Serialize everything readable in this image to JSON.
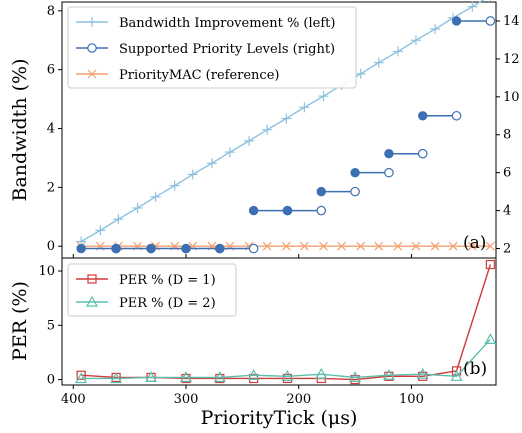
{
  "chart_data": [
    {
      "type": "line",
      "panel_tag": "(a)",
      "ylabel": "Bandwidth (%)",
      "xlim": [
        410,
        25
      ],
      "ylim": [
        -0.4,
        8.3
      ],
      "y2lim": [
        1.5,
        15.0
      ],
      "yticks": [
        0,
        2,
        4,
        6,
        8
      ],
      "y2ticks": [
        2,
        4,
        6,
        8,
        10,
        12,
        14
      ],
      "grid": false,
      "legend_position": "upper-left",
      "series": [
        {
          "name": "Bandwidth Improvement % (left)",
          "axis": "left",
          "color": "#8ec1dd",
          "marker": "plus",
          "x": [
            393,
            376,
            360,
            343,
            327,
            310,
            294,
            277,
            261,
            244,
            228,
            211,
            195,
            178,
            162,
            145,
            129,
            112,
            96,
            79,
            63,
            46,
            30
          ],
          "y": [
            0.16,
            0.54,
            0.92,
            1.3,
            1.68,
            2.06,
            2.44,
            2.82,
            3.2,
            3.58,
            3.96,
            4.34,
            4.72,
            5.1,
            5.48,
            5.86,
            6.24,
            6.62,
            7.0,
            7.38,
            7.76,
            8.14,
            8.52
          ]
        },
        {
          "name": "Supported Priority Levels (right)",
          "axis": "right",
          "color": "#3d6fb3",
          "marker": "circle-step",
          "segments": [
            {
              "x_start": 393,
              "x_end": 362,
              "y": 2.0
            },
            {
              "x_start": 362,
              "x_end": 331,
              "y": 2.0
            },
            {
              "x_start": 331,
              "x_end": 300,
              "y": 2.0
            },
            {
              "x_start": 300,
              "x_end": 270,
              "y": 2.0
            },
            {
              "x_start": 270,
              "x_end": 240,
              "y": 2.0
            },
            {
              "x_start": 240,
              "x_end": 210,
              "y": 4.0
            },
            {
              "x_start": 210,
              "x_end": 180,
              "y": 4.0
            },
            {
              "x_start": 180,
              "x_end": 150,
              "y": 5.0
            },
            {
              "x_start": 150,
              "x_end": 120,
              "y": 6.0
            },
            {
              "x_start": 120,
              "x_end": 90,
              "y": 7.0
            },
            {
              "x_start": 90,
              "x_end": 60,
              "y": 9.0
            },
            {
              "x_start": 60,
              "x_end": 30,
              "y": 14.0
            }
          ]
        },
        {
          "name": "PriorityMAC (reference)",
          "axis": "left",
          "color": "#f4a070",
          "marker": "x",
          "x": [
            393,
            376,
            360,
            343,
            327,
            310,
            294,
            277,
            261,
            244,
            228,
            211,
            195,
            178,
            162,
            145,
            129,
            112,
            96,
            79,
            63,
            46,
            30
          ],
          "y": [
            0,
            0,
            0,
            0,
            0,
            0,
            0,
            0,
            0,
            0,
            0,
            0,
            0,
            0,
            0,
            0,
            0,
            0,
            0,
            0,
            0,
            0,
            0
          ]
        }
      ]
    },
    {
      "type": "line",
      "panel_tag": "(b)",
      "xlabel": "PriorityTick (μs)",
      "ylabel": "PER (%)",
      "xlim": [
        410,
        25
      ],
      "ylim": [
        -0.5,
        11.2
      ],
      "xticks": [
        400,
        300,
        200,
        100
      ],
      "yticks": [
        0,
        5,
        10
      ],
      "grid": false,
      "legend_position": "upper-left",
      "series": [
        {
          "name": "PER % (D = 1)",
          "color": "#d03a3a",
          "marker": "square",
          "x": [
            393,
            362,
            331,
            300,
            270,
            240,
            210,
            180,
            150,
            120,
            90,
            60,
            30
          ],
          "y": [
            0.4,
            0.2,
            0.2,
            0.1,
            0.1,
            0.1,
            0.1,
            0.1,
            0.0,
            0.3,
            0.3,
            0.8,
            10.6
          ]
        },
        {
          "name": "PER % (D = 2)",
          "color": "#5bbfae",
          "marker": "triangle",
          "x": [
            393,
            362,
            331,
            300,
            270,
            240,
            210,
            180,
            150,
            120,
            90,
            60,
            30
          ],
          "y": [
            0.1,
            0.1,
            0.2,
            0.2,
            0.2,
            0.4,
            0.3,
            0.5,
            0.2,
            0.4,
            0.5,
            0.3,
            3.7
          ]
        }
      ]
    }
  ]
}
